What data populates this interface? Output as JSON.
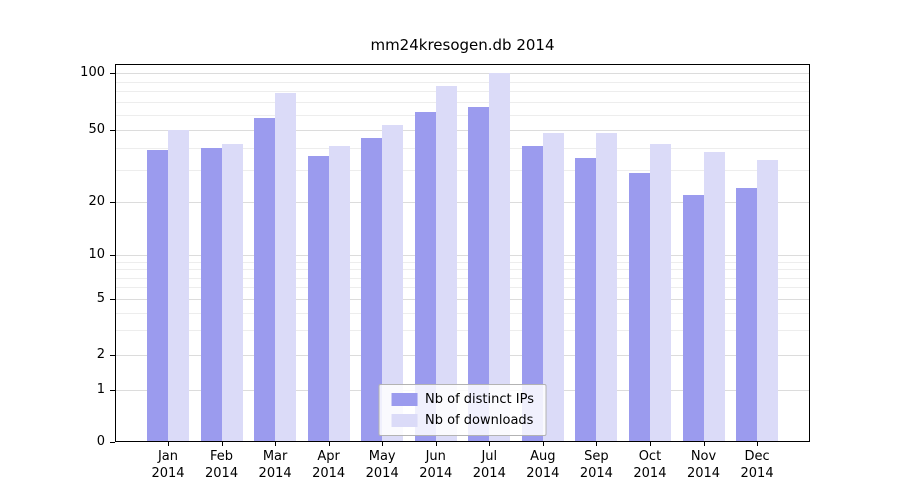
{
  "chart_data": {
    "type": "bar",
    "title": "mm24kresogen.db 2014",
    "categories": [
      "Jan",
      "Feb",
      "Mar",
      "Apr",
      "May",
      "Jun",
      "Jul",
      "Aug",
      "Sep",
      "Oct",
      "Nov",
      "Dec"
    ],
    "year": "2014",
    "series": [
      {
        "name": "Nb of distinct IPs",
        "color": "#9b9bee",
        "values": [
          39,
          40,
          58,
          36,
          45,
          62,
          66,
          41,
          35,
          29,
          22,
          24
        ]
      },
      {
        "name": "Nb of downloads",
        "color": "#dbdbf8",
        "values": [
          50,
          42,
          78,
          41,
          53,
          85,
          100,
          48,
          48,
          42,
          38,
          34
        ]
      }
    ],
    "yticks": [
      0,
      1,
      2,
      5,
      10,
      20,
      50,
      100
    ],
    "yscale": "log-like (0,1,2,5,10,20,50,100)",
    "ylabel": "",
    "xlabel": "",
    "grid": "horizontal, faint",
    "legend_position": "lower center inside plot"
  }
}
